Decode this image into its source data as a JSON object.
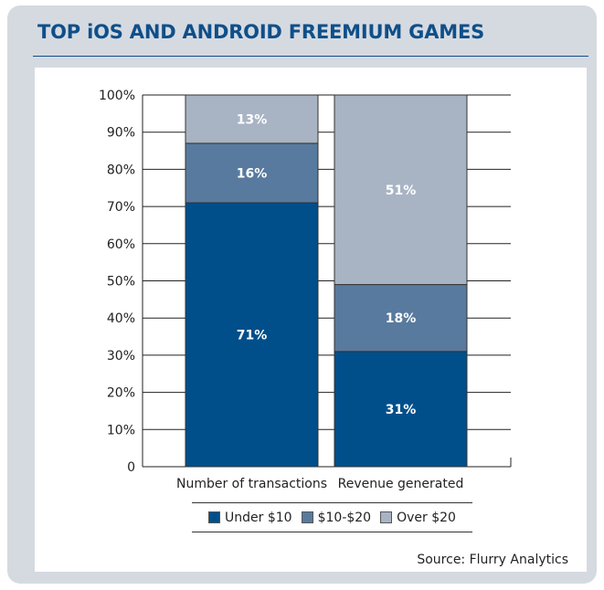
{
  "header": {
    "title": "TOP iOS AND ANDROID FREEMIUM GAMES"
  },
  "chart_data": {
    "type": "bar",
    "stacked": true,
    "title": "TOP iOS AND ANDROID FREEMIUM GAMES",
    "xlabel": "",
    "ylabel": "",
    "ylim": [
      0,
      100
    ],
    "categories": [
      "Number of transactions",
      "Revenue generated"
    ],
    "y_ticks": [
      "0",
      "10%",
      "20%",
      "30%",
      "40%",
      "50%",
      "60%",
      "70%",
      "80%",
      "90%",
      "100%"
    ],
    "series": [
      {
        "name": "Under $10",
        "color": "#004f8b",
        "values": [
          71,
          31
        ],
        "labels": [
          "71%",
          "31%"
        ]
      },
      {
        "name": "$10-$20",
        "color": "#587a9e",
        "values": [
          16,
          18
        ],
        "labels": [
          "16%",
          "18%"
        ]
      },
      {
        "name": "Over $20",
        "color": "#a8b4c4",
        "values": [
          13,
          51
        ],
        "labels": [
          "13%",
          "51%"
        ]
      }
    ],
    "legend": {
      "position": "bottom"
    },
    "grid": true
  },
  "source": "Source: Flurry Analytics"
}
